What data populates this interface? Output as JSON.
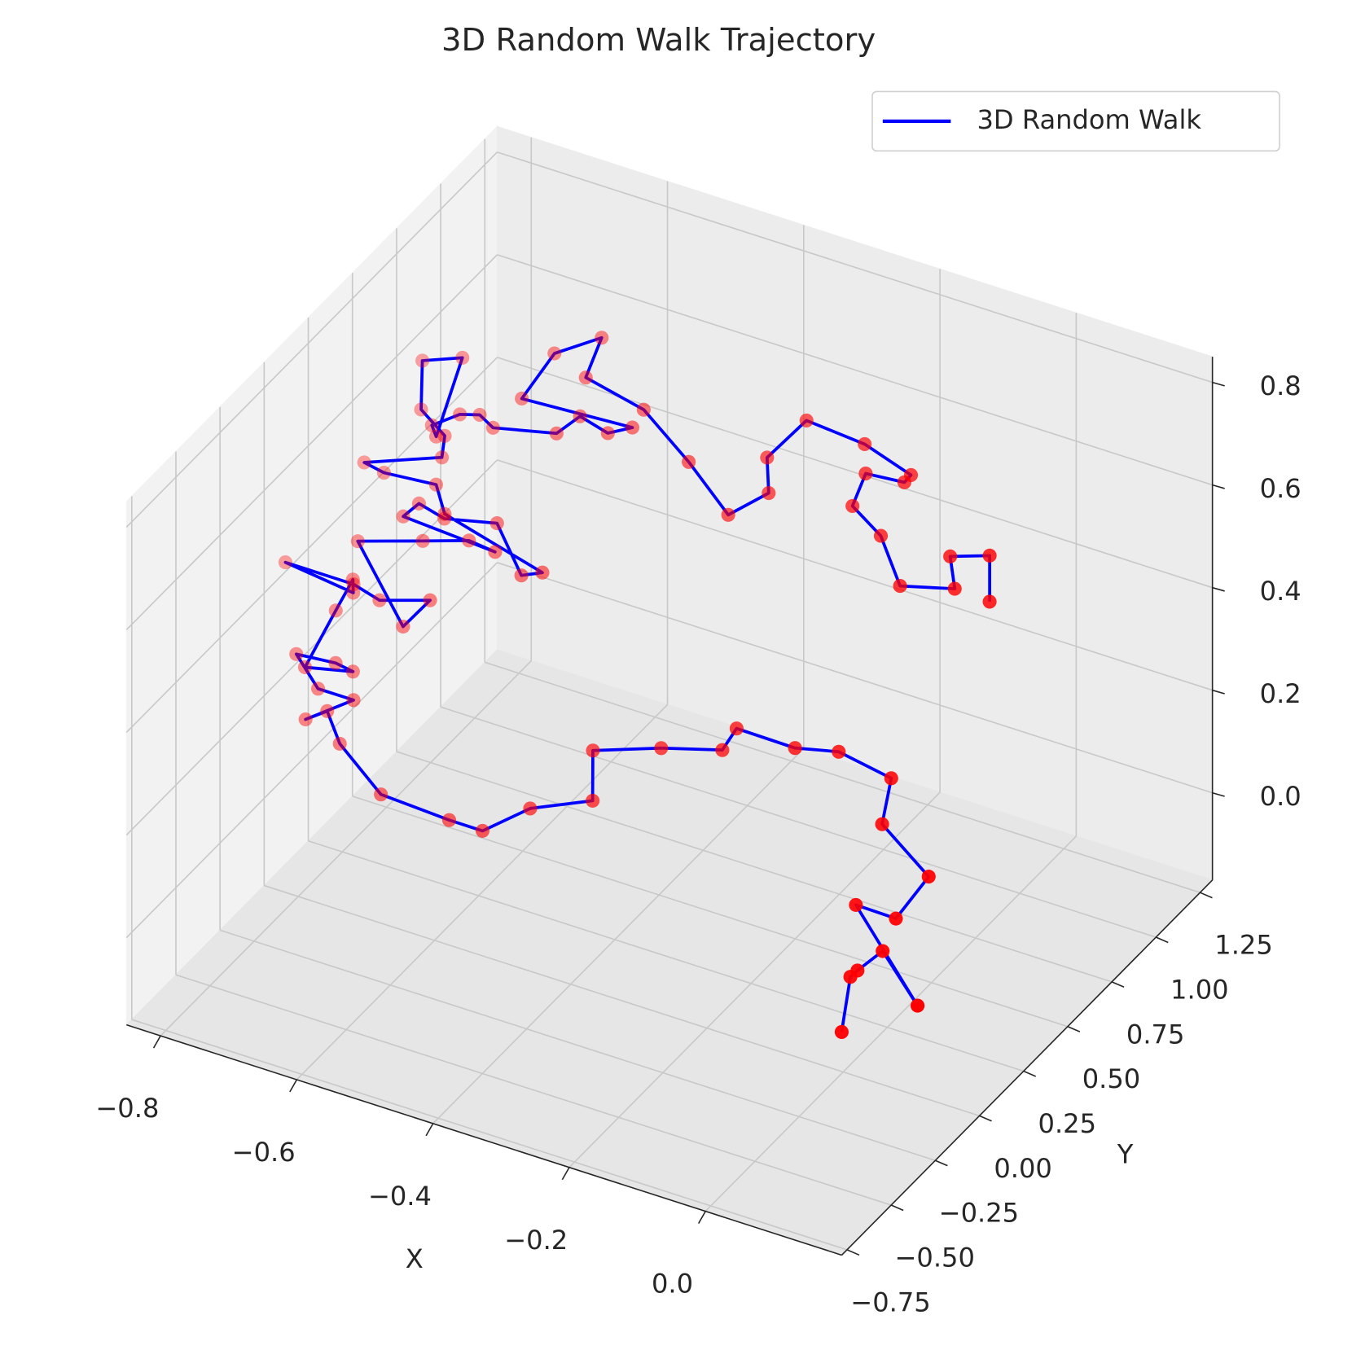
{
  "chart_data": {
    "type": "line3d",
    "title": "3D Random Walk Trajectory",
    "xlabel": "X",
    "ylabel": "Y",
    "xlim": [
      -0.85,
      0.2
    ],
    "ylim": [
      -0.78,
      1.32
    ],
    "zlim": [
      -0.17,
      0.85
    ],
    "xticks": [
      {
        "value": -0.8,
        "label": "−0.8"
      },
      {
        "value": -0.6,
        "label": "−0.6"
      },
      {
        "value": -0.4,
        "label": "−0.4"
      },
      {
        "value": -0.2,
        "label": "−0.2"
      },
      {
        "value": 0,
        "label": "0.0"
      }
    ],
    "yticks": [
      {
        "value": -0.75,
        "label": "−0.75"
      },
      {
        "value": -0.5,
        "label": "−0.50"
      },
      {
        "value": -0.25,
        "label": "−0.25"
      },
      {
        "value": 0,
        "label": "0.00"
      },
      0.25,
      {
        "value": 0.5,
        "label": "0.50"
      },
      0.75,
      {
        "value": 1,
        "label": "1.00"
      },
      1.25
    ],
    "zticks": [
      {
        "value": 0,
        "label": "0.0"
      },
      0.2,
      0.4,
      0.6,
      0.8
    ],
    "grid": true,
    "legend": "upper right",
    "depthshade": true,
    "series": [
      {
        "name": "3D Random Walk",
        "color": "#0000ff",
        "marker_color": "#ff0000",
        "x": [
          0.117,
          0.101,
          0.107,
          0.13,
          0.203,
          0.072,
          0.131,
          0.153,
          0.066,
          0.055,
          -0.027,
          -0.086,
          -0.172,
          -0.18,
          -0.261,
          -0.349,
          -0.324,
          -0.402,
          -0.453,
          -0.502,
          -0.604,
          -0.683,
          -0.716,
          -0.74,
          -0.687,
          -0.739,
          -0.785,
          -0.729,
          -0.702,
          -0.767,
          -0.755,
          -0.748,
          -0.741,
          -0.845,
          -0.745,
          -0.703,
          -0.637,
          -0.659,
          -0.761,
          -0.676,
          -0.616,
          -0.576,
          -0.714,
          -0.7,
          -0.659,
          -0.588,
          -0.53,
          -0.504,
          -0.661,
          -0.687,
          -0.761,
          -0.792,
          -0.693,
          -0.7,
          -0.744,
          -0.767,
          -0.716,
          -0.711,
          -0.722,
          -0.691,
          -0.665,
          -0.641,
          -0.555,
          -0.533,
          -0.488,
          -0.459,
          -0.618,
          -0.598,
          -0.544,
          -0.545,
          -0.453,
          -0.368,
          -0.29,
          -0.248,
          -0.268,
          -0.235,
          -0.147,
          -0.071,
          -0.076,
          -0.131,
          -0.132,
          -0.08,
          -0.03,
          0.043,
          0.021,
          0.072,
          0.095
        ],
        "y": [
          -0.46,
          -0.349,
          -0.332,
          -0.278,
          -0.362,
          -0.206,
          -0.207,
          -0.106,
          -0.034,
          0.06,
          0.079,
          0.059,
          0.06,
          0.01,
          -0.024,
          -0.071,
          -0.169,
          -0.222,
          -0.295,
          -0.295,
          -0.288,
          -0.216,
          -0.16,
          -0.19,
          -0.123,
          -0.123,
          -0.069,
          -0.062,
          -0.068,
          -0.089,
          0.039,
          0.109,
          0.084,
          0.101,
          0.101,
          0.086,
          0.118,
          0.05,
          0.187,
          0.227,
          0.257,
          0.251,
          0.263,
          0.298,
          0.284,
          0.308,
          0.222,
          0.241,
          0.293,
          0.345,
          0.335,
          0.343,
          0.401,
          0.444,
          0.48,
          0.576,
          0.606,
          0.438,
          0.456,
          0.495,
          0.507,
          0.49,
          0.518,
          0.566,
          0.55,
          0.577,
          0.564,
          0.672,
          0.731,
          0.645,
          0.618,
          0.545,
          0.468,
          0.535,
          0.603,
          0.699,
          0.689,
          0.658,
          0.64,
          0.633,
          0.562,
          0.522,
          0.438,
          0.466,
          0.525,
          0.552,
          0.463
        ],
        "z": [
          0.118,
          0.18,
          0.189,
          0.218,
          0.172,
          0.258,
          0.257,
          0.313,
          0.353,
          0.405,
          0.415,
          0.404,
          0.405,
          0.377,
          0.358,
          0.332,
          0.279,
          0.249,
          0.209,
          0.209,
          0.213,
          0.253,
          0.283,
          0.267,
          0.304,
          0.304,
          0.333,
          0.337,
          0.334,
          0.322,
          0.393,
          0.432,
          0.418,
          0.427,
          0.427,
          0.419,
          0.436,
          0.399,
          0.474,
          0.497,
          0.513,
          0.51,
          0.516,
          0.535,
          0.528,
          0.541,
          0.494,
          0.504,
          0.533,
          0.561,
          0.556,
          0.56,
          0.592,
          0.616,
          0.636,
          0.688,
          0.705,
          0.612,
          0.623,
          0.644,
          0.65,
          0.641,
          0.657,
          0.683,
          0.675,
          0.689,
          0.682,
          0.741,
          0.774,
          0.726,
          0.712,
          0.672,
          0.629,
          0.666,
          0.703,
          0.756,
          0.751,
          0.734,
          0.724,
          0.72,
          0.681,
          0.659,
          0.612,
          0.628,
          0.661,
          0.675,
          0.626
        ]
      }
    ]
  }
}
